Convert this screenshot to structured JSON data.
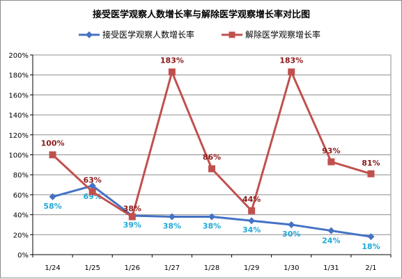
{
  "chart_data": {
    "type": "line",
    "title": "接受医学观察人数增长率与解除医学观察增长率对比图",
    "categories": [
      "1/24",
      "1/25",
      "1/26",
      "1/27",
      "1/28",
      "1/29",
      "1/30",
      "1/31",
      "2/1"
    ],
    "ylim": [
      0,
      200
    ],
    "yticks": [
      "0%",
      "20%",
      "40%",
      "60%",
      "80%",
      "100%",
      "120%",
      "140%",
      "160%",
      "180%",
      "200%"
    ],
    "legend_position": "top",
    "grid": true,
    "series": [
      {
        "name": "接受医学观察人数增长率",
        "color": "#4472c4",
        "label_color": "#1fa9d6",
        "marker": "diamond",
        "values": [
          58,
          69,
          39,
          38,
          38,
          34,
          30,
          24,
          18
        ],
        "labels": [
          "58%",
          "69%",
          "39%",
          "38%",
          "38%",
          "34%",
          "30%",
          "24%",
          "18%"
        ]
      },
      {
        "name": "解除医学观察增长率",
        "color": "#c0504d",
        "label_color": "#8b1a1a",
        "marker": "square",
        "values": [
          100,
          63,
          38,
          183,
          86,
          44,
          183,
          93,
          81
        ],
        "labels": [
          "100%",
          "63%",
          "38%",
          "183%",
          "86%",
          "44%",
          "183%",
          "93%",
          "81%"
        ]
      }
    ]
  }
}
